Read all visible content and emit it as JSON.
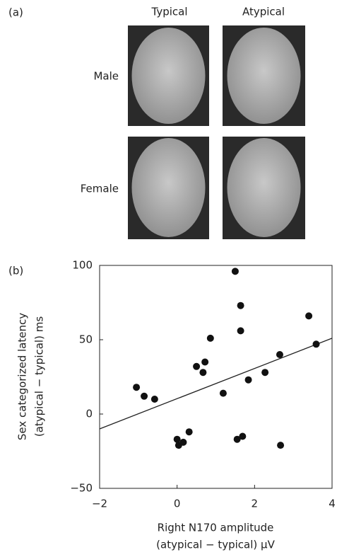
{
  "panel_a": {
    "label": "(a)",
    "columns": [
      "Typical",
      "Atypical"
    ],
    "rows": [
      "Male",
      "Female"
    ]
  },
  "chart_data": {
    "type": "scatter",
    "panel_label": "(b)",
    "x_label": [
      "Right N170 amplitude",
      "(atypical − typical) μV"
    ],
    "y_label": [
      "Sex categorized latency",
      "(atypical − typical) ms"
    ],
    "color": "#111111",
    "x": [
      -1.05,
      -0.85,
      -0.58,
      0,
      0.04,
      0.16,
      0.31,
      0.5,
      0.67,
      0.72,
      0.86,
      1.19,
      1.5,
      1.55,
      1.64,
      1.64,
      1.69,
      1.84,
      2.27,
      2.65,
      2.67,
      3.4,
      3.59
    ],
    "values": [
      18,
      12,
      10,
      -17,
      -21,
      -19,
      -12,
      32,
      28,
      35,
      51,
      14,
      96,
      -17,
      73,
      56,
      -15,
      23,
      28,
      40,
      -21,
      66,
      47
    ],
    "trend_line": {
      "x": [
        -2,
        4
      ],
      "values": [
        -10,
        51
      ]
    },
    "xlim": [
      -2,
      4
    ],
    "ylim": [
      -50,
      100
    ],
    "xticks": [
      {
        "value": -2,
        "label": "−2"
      },
      0,
      2,
      4
    ],
    "yticks": [
      {
        "value": -50,
        "label": "−50"
      },
      0,
      50,
      100
    ]
  }
}
